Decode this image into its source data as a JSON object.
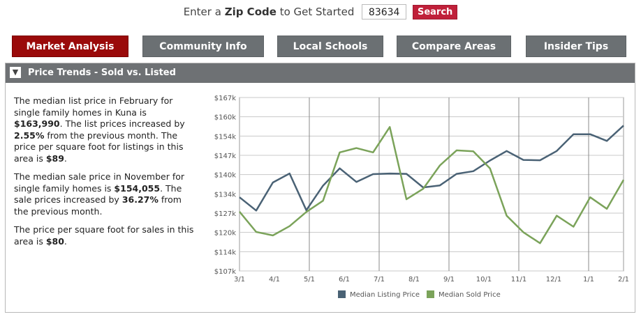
{
  "zip": {
    "prefix": "Enter a",
    "bold": "Zip Code",
    "suffix": "to Get Started",
    "value": "83634",
    "search_label": "Search"
  },
  "tabs": [
    {
      "label": "Market Analysis",
      "active": true
    },
    {
      "label": "Community Info",
      "active": false
    },
    {
      "label": "Local Schools",
      "active": false
    },
    {
      "label": "Compare Areas",
      "active": false
    },
    {
      "label": "Insider Tips",
      "active": false
    }
  ],
  "panel": {
    "title": "Price Trends - Sold vs. Listed",
    "collapse_icon": "chevron-down-icon"
  },
  "description": {
    "p1": {
      "t1": "The median list price in February for single family homes in Kuna is ",
      "b1": "$163,990",
      "t2": ". The list prices increased by ",
      "b2": "2.55%",
      "t3": " from the previous month. The price per square foot for listings in this area is ",
      "b3": "$89",
      "t4": "."
    },
    "p2": {
      "t1": "The median sale price in November for single family homes is ",
      "b1": "$154,055",
      "t2": ". The sale prices increased by ",
      "b2": "36.27%",
      "t3": " from the previous month."
    },
    "p3": {
      "t1": "The price per square foot for sales in this area is ",
      "b1": "$80",
      "t2": "."
    }
  },
  "colors": {
    "listing": "#4a6275",
    "sold": "#7ba35a",
    "tab_active": "#9a0a0a",
    "tab": "#6b7073",
    "search": "#c0203a"
  },
  "chart_data": {
    "type": "line",
    "x": [
      "3/1",
      "3/15",
      "4/1",
      "4/15",
      "5/1",
      "5/15",
      "6/1",
      "6/15",
      "7/1",
      "7/15",
      "8/1",
      "8/15",
      "9/1",
      "9/15",
      "10/1",
      "10/15",
      "11/1",
      "11/15",
      "12/1",
      "12/15",
      "1/1",
      "1/15",
      "2/1",
      "2/15"
    ],
    "xtick_labels": [
      "3/1",
      "4/1",
      "5/1",
      "6/1",
      "7/1",
      "8/1",
      "9/1",
      "10/1",
      "11/1",
      "12/1",
      "1/1",
      "2/1"
    ],
    "ytick_labels": [
      "$107k",
      "$114k",
      "$120k",
      "$127k",
      "$134k",
      "$140k",
      "$147k",
      "$154k",
      "$160k",
      "$167k"
    ],
    "ylim": [
      107,
      167
    ],
    "series": [
      {
        "name": "Median Listing Price",
        "values": [
          132.5,
          127.9,
          137.6,
          140.7,
          128,
          136.5,
          142.5,
          137.8,
          140.5,
          140.7,
          140.6,
          135.9,
          136.6,
          140.6,
          141.5,
          145.2,
          148.5,
          145.4,
          145.3,
          148.5,
          154.3,
          154.3,
          152,
          157.3
        ]
      },
      {
        "name": "Median Sold Price",
        "values": [
          127.5,
          120.5,
          119.3,
          122.5,
          127.4,
          131.3,
          148,
          149.5,
          148,
          156.8,
          131.8,
          135.4,
          143.5,
          148.7,
          148.4,
          142.5,
          126.1,
          120.4,
          116.6,
          126.1,
          122.3,
          132.5,
          128.5,
          138.5
        ]
      }
    ],
    "legend_position": "bottom",
    "grid": true
  }
}
